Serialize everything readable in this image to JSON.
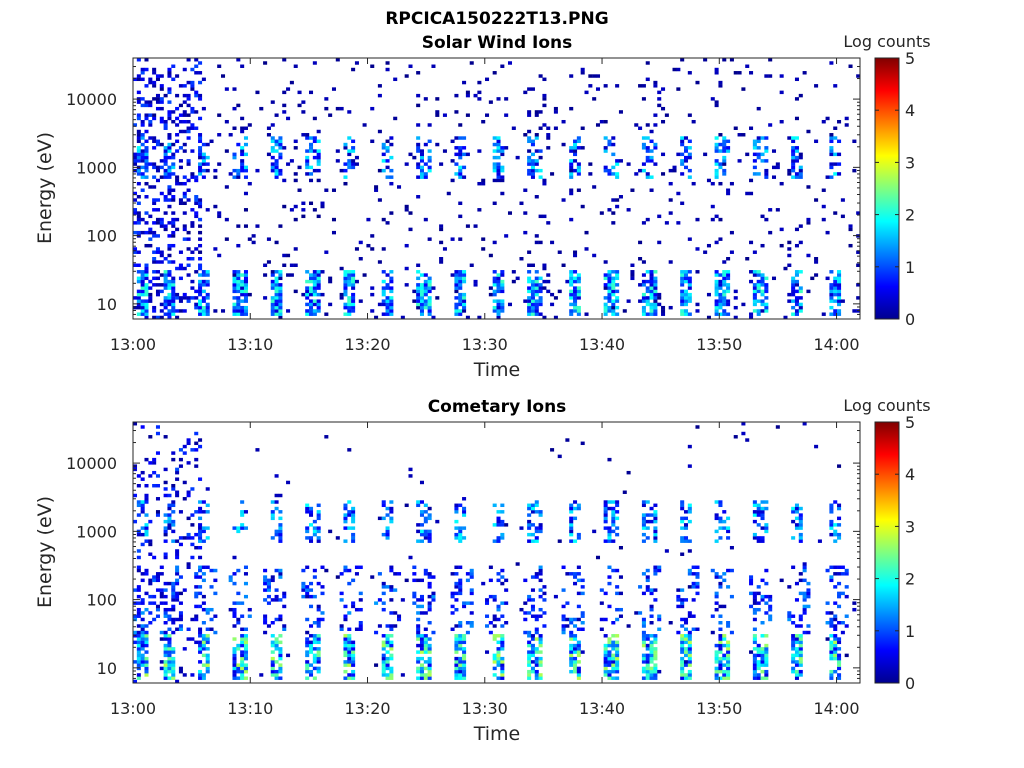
{
  "figure_title": "RPCICA150222T13.PNG",
  "chart_data": [
    {
      "type": "heatmap",
      "title": "Solar Wind Ions",
      "xlabel": "Time",
      "ylabel": "Energy (eV)",
      "x_range_minutes": [
        0,
        62
      ],
      "xticks": [
        "13:00",
        "13:10",
        "13:20",
        "13:30",
        "13:40",
        "13:50",
        "14:00"
      ],
      "y_scale": "log",
      "ylim": [
        6,
        40000
      ],
      "yticks": [
        {
          "value": 10,
          "label": "10"
        },
        {
          "value": 100,
          "label": "100"
        },
        {
          "value": 1000,
          "label": "1000"
        },
        {
          "value": 10000,
          "label": "10000"
        }
      ],
      "colorbar": {
        "label": "Log counts",
        "range": [
          0,
          5
        ],
        "ticks": [
          "0",
          "1",
          "2",
          "3",
          "4",
          "5"
        ],
        "colormap": "jet"
      },
      "features": {
        "sweep_minutes": [
          0.8,
          3.1,
          6.1,
          9.1,
          12.2,
          15.3,
          18.5,
          21.7,
          24.8,
          28.0,
          31.1,
          34.3,
          37.6,
          40.8,
          44.0,
          47.2,
          50.3,
          53.5,
          56.7,
          59.9
        ],
        "low_energy_band_eV": [
          7,
          30
        ],
        "mid_energy_band_eV": [
          700,
          3000
        ],
        "scatter_density": 0.05
      }
    },
    {
      "type": "heatmap",
      "title": "Cometary Ions",
      "xlabel": "Time",
      "ylabel": "Energy (eV)",
      "x_range_minutes": [
        0,
        62
      ],
      "xticks": [
        "13:00",
        "13:10",
        "13:20",
        "13:30",
        "13:40",
        "13:50",
        "14:00"
      ],
      "y_scale": "log",
      "ylim": [
        6,
        40000
      ],
      "yticks": [
        {
          "value": 10,
          "label": "10"
        },
        {
          "value": 100,
          "label": "100"
        },
        {
          "value": 1000,
          "label": "1000"
        },
        {
          "value": 10000,
          "label": "10000"
        }
      ],
      "colorbar": {
        "label": "Log counts",
        "range": [
          0,
          5
        ],
        "ticks": [
          "0",
          "1",
          "2",
          "3",
          "4",
          "5"
        ],
        "colormap": "jet"
      },
      "features": {
        "sweep_minutes": [
          0.8,
          3.1,
          6.1,
          9.1,
          12.2,
          15.3,
          18.5,
          21.7,
          24.8,
          28.0,
          31.1,
          34.3,
          37.6,
          40.8,
          44.0,
          47.2,
          50.3,
          53.5,
          56.7,
          59.9
        ],
        "low_energy_band_eV": [
          7,
          30
        ],
        "mid_energy_band_eV": [
          700,
          3000
        ],
        "scatter_density": 0.008
      }
    }
  ]
}
